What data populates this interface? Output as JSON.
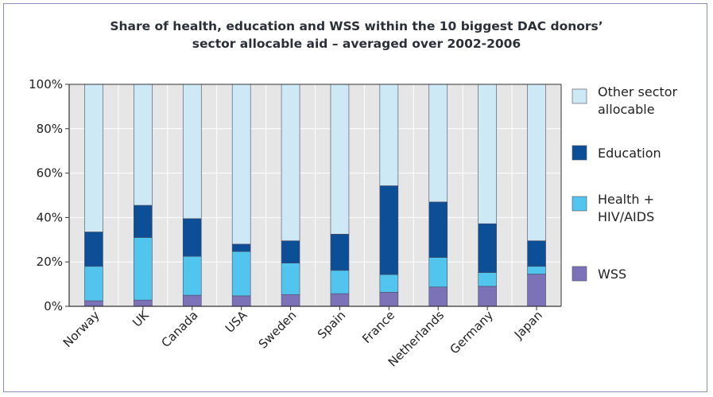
{
  "chart_data": {
    "type": "bar",
    "stacked": true,
    "title": "Share of health, education and WSS within the 10 biggest DAC donors' sector allocable aid – averaged over 2002-2006",
    "title_lines": [
      "Share of health, education and WSS within the 10 biggest DAC donors’",
      "sector allocable aid – averaged over 2002-2006"
    ],
    "xlabel": "",
    "ylabel": "",
    "ylim": [
      0,
      100
    ],
    "y_ticks": [
      "0%",
      "20%",
      "40%",
      "60%",
      "80%",
      "100%"
    ],
    "grid": true,
    "legend_placement": "right",
    "categories": [
      "Norway",
      "UK",
      "Canada",
      "USA",
      "Sweden",
      "Spain",
      "France",
      "Netherlands",
      "Germany",
      "Japan"
    ],
    "series": [
      {
        "name": "WSS",
        "color": "#7b72b8",
        "values": [
          2.5,
          2.8,
          5,
          4.7,
          5.3,
          5.7,
          6.3,
          8.7,
          9,
          14.5
        ]
      },
      {
        "name": "Health + HIV/AIDS",
        "color": "#52c5ef",
        "values": [
          15.5,
          28.2,
          17.5,
          20,
          14.2,
          10.5,
          8,
          13.3,
          6.2,
          3.5
        ]
      },
      {
        "name": "Education",
        "color": "#0d4f96",
        "values": [
          15.5,
          14.5,
          17,
          3.3,
          10,
          16.3,
          40,
          25,
          22,
          11.5
        ]
      },
      {
        "name": "Other sector allocable",
        "color": "#cde9f5",
        "values": [
          66.5,
          54.5,
          60.5,
          72,
          70.5,
          67.5,
          45.7,
          53,
          62.8,
          70.5
        ]
      }
    ],
    "legend": [
      {
        "lines": [
          "Other sector",
          "allocable"
        ],
        "color": "#cde9f5"
      },
      {
        "lines": [
          "Education"
        ],
        "color": "#0d4f96"
      },
      {
        "lines": [
          "Health +",
          "HIV/AIDS"
        ],
        "color": "#52c5ef"
      },
      {
        "lines": [
          "WSS"
        ],
        "color": "#7b72b8"
      }
    ]
  }
}
